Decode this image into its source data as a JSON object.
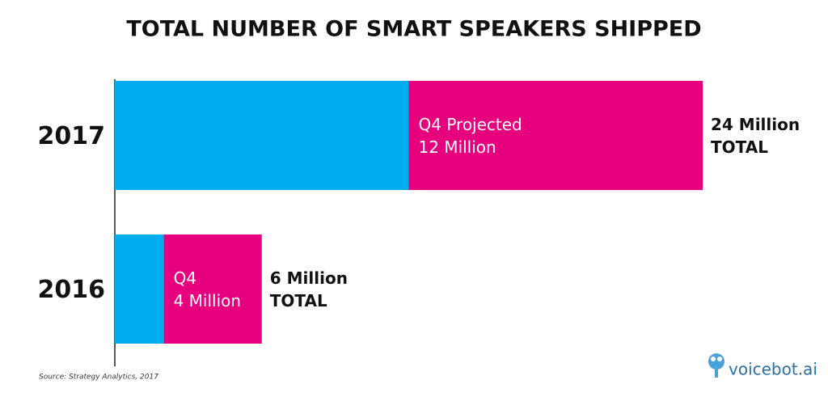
{
  "chart_data": {
    "type": "stacked-hbar",
    "title": "TOTAL NUMBER OF SMART SPEAKERS SHIPPED",
    "categories": [
      "2017",
      "2016"
    ],
    "series": [
      {
        "color": "#00aeef",
        "values": [
          12,
          2
        ]
      },
      {
        "color": "#e6007e",
        "values": [
          12,
          4
        ],
        "segment_labels": [
          "Q4 Projected",
          "Q4"
        ],
        "value_labels": [
          "12 Million",
          "4 Million"
        ]
      }
    ],
    "totals": {
      "values": [
        24,
        6
      ],
      "value_labels": [
        "24 Million",
        "6 Million"
      ],
      "caption": "TOTAL"
    },
    "xlim": [
      0,
      24
    ],
    "source": "Source: Strategy Analytics, 2017",
    "logo": "voicebot.ai"
  }
}
